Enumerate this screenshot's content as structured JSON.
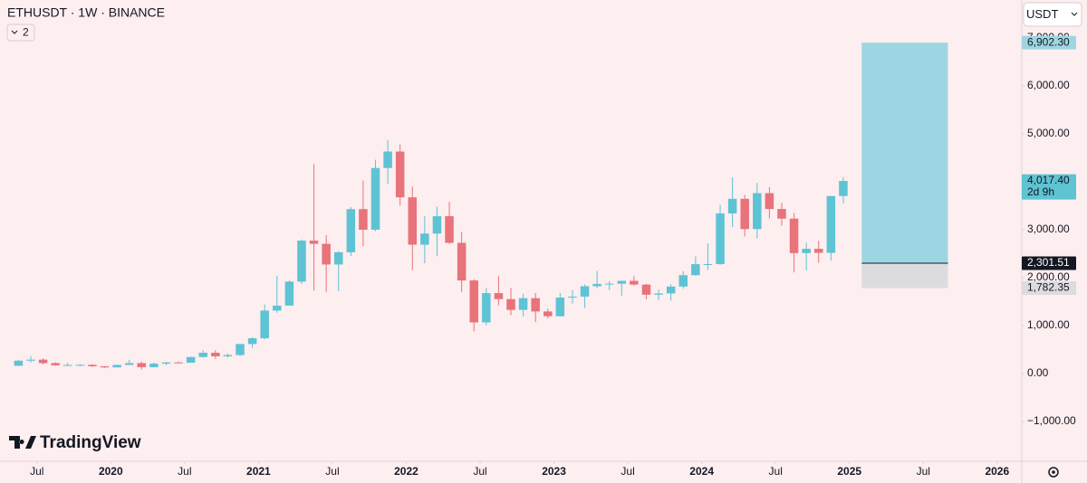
{
  "chart_data": {
    "type": "candlestick",
    "title": "ETHUSDT · 1W · BINANCE",
    "indicator_count": "2",
    "currency": "USDT",
    "logo": "TradingView",
    "up_color": "#5ec3d3",
    "down_color": "#e8737a",
    "x": [
      "2019-05",
      "2019-06",
      "2019-07",
      "2019-08",
      "2019-09",
      "2019-10",
      "2019-11",
      "2019-12",
      "2020-01",
      "2020-02",
      "2020-03",
      "2020-04",
      "2020-05",
      "2020-06",
      "2020-07",
      "2020-08",
      "2020-09",
      "2020-10",
      "2020-11",
      "2020-12",
      "2021-01",
      "2021-02",
      "2021-03",
      "2021-04",
      "2021-05",
      "2021-06",
      "2021-07",
      "2021-08",
      "2021-09",
      "2021-10",
      "2021-11",
      "2021-12",
      "2022-01",
      "2022-02",
      "2022-03",
      "2022-04",
      "2022-05",
      "2022-06",
      "2022-07",
      "2022-08",
      "2022-09",
      "2022-10",
      "2022-11",
      "2022-12",
      "2023-01",
      "2023-02",
      "2023-03",
      "2023-04",
      "2023-05",
      "2023-06",
      "2023-07",
      "2023-08",
      "2023-09",
      "2023-10",
      "2023-11",
      "2023-12",
      "2024-01",
      "2024-02",
      "2024-03",
      "2024-04",
      "2024-05",
      "2024-06",
      "2024-07",
      "2024-08",
      "2024-09",
      "2024-10",
      "2024-11",
      "2024-12"
    ],
    "open": [
      162,
      268,
      290,
      218,
      172,
      180,
      182,
      152,
      129,
      180,
      218,
      133,
      206,
      231,
      226,
      345,
      434,
      360,
      386,
      616,
      737,
      1314,
      1417,
      1918,
      2773,
      2706,
      2275,
      2530,
      3430,
      3000,
      4288,
      4631,
      3676,
      2688,
      2920,
      3282,
      2727,
      1942,
      1067,
      1678,
      1553,
      1328,
      1572,
      1295,
      1196,
      1585,
      1605,
      1822,
      1870,
      1874,
      1934,
      1856,
      1645,
      1671,
      1815,
      2052,
      2282,
      2283,
      3340,
      3645,
      3014,
      3763,
      3433,
      3232,
      2513,
      2602,
      2518,
      3703
    ],
    "high": [
      285,
      363,
      317,
      237,
      224,
      197,
      196,
      153,
      185,
      288,
      253,
      227,
      245,
      253,
      349,
      488,
      488,
      419,
      622,
      757,
      1440,
      2040,
      1943,
      2797,
      4372,
      2890,
      2552,
      3473,
      4027,
      4460,
      4868,
      4778,
      3900,
      3285,
      3480,
      3580,
      2955,
      1970,
      1787,
      2030,
      1785,
      1666,
      1680,
      1353,
      1680,
      1743,
      1857,
      2141,
      1928,
      1935,
      2029,
      1870,
      1753,
      1865,
      2137,
      2445,
      2718,
      3522,
      4093,
      3730,
      3977,
      3887,
      3562,
      3350,
      2728,
      2770,
      3682,
      4100
    ],
    "low": [
      158,
      231,
      190,
      163,
      153,
      155,
      137,
      117,
      126,
      179,
      86,
      128,
      176,
      216,
      224,
      335,
      308,
      335,
      366,
      532,
      714,
      1270,
      1438,
      1865,
      1728,
      1700,
      1718,
      2450,
      2652,
      2970,
      3960,
      3500,
      2160,
      2300,
      2450,
      2700,
      1700,
      880,
      1006,
      1422,
      1220,
      1190,
      1073,
      1150,
      1190,
      1460,
      1368,
      1785,
      1740,
      1626,
      1833,
      1550,
      1531,
      1521,
      1770,
      2041,
      2160,
      2265,
      3056,
      2860,
      2818,
      3236,
      3087,
      2111,
      2150,
      2310,
      2357,
      3550
    ],
    "close": [
      268,
      290,
      218,
      172,
      180,
      182,
      152,
      129,
      180,
      218,
      133,
      206,
      231,
      226,
      345,
      434,
      360,
      386,
      616,
      737,
      1314,
      1417,
      1918,
      2773,
      2706,
      2275,
      2530,
      3430,
      3000,
      4288,
      4631,
      3676,
      2688,
      2920,
      3282,
      2727,
      1942,
      1067,
      1678,
      1553,
      1328,
      1572,
      1295,
      1196,
      1585,
      1605,
      1822,
      1870,
      1874,
      1934,
      1856,
      1645,
      1671,
      1815,
      2052,
      2282,
      2283,
      3340,
      3645,
      3014,
      3763,
      3433,
      3232,
      2513,
      2602,
      2518,
      3703,
      4017.4
    ],
    "xlim": [
      "2019-04",
      "2026-03"
    ],
    "xticks": [
      {
        "value": "2019-07",
        "label": "Jul"
      },
      {
        "value": "2020-01",
        "label": "2020"
      },
      {
        "value": "2020-07",
        "label": "Jul"
      },
      {
        "value": "2021-01",
        "label": "2021"
      },
      {
        "value": "2021-07",
        "label": "Jul"
      },
      {
        "value": "2022-01",
        "label": "2022"
      },
      {
        "value": "2022-07",
        "label": "Jul"
      },
      {
        "value": "2023-01",
        "label": "2023"
      },
      {
        "value": "2023-07",
        "label": "Jul"
      },
      {
        "value": "2024-01",
        "label": "2024"
      },
      {
        "value": "2024-07",
        "label": "Jul"
      },
      {
        "value": "2025-01",
        "label": "2025"
      },
      {
        "value": "2025-07",
        "label": "Jul"
      },
      {
        "value": "2026-01",
        "label": "2026"
      }
    ],
    "ylim": [
      -1830,
      7792
    ],
    "yticks": [
      {
        "value": -1000,
        "label": "−1,000.00"
      },
      {
        "value": 0,
        "label": "0.00"
      },
      {
        "value": 1000,
        "label": "1,000.00"
      },
      {
        "value": 2000,
        "label": "2,000.00"
      },
      {
        "value": 3000,
        "label": "3,000.00"
      },
      {
        "value": 4000,
        "label": "4,000.00"
      },
      {
        "value": 5000,
        "label": "5,000.00"
      },
      {
        "value": 6000,
        "label": "6,000.00"
      },
      {
        "value": 7000,
        "label": "7,000.00"
      }
    ],
    "grid": false,
    "position": {
      "x": [
        "2025-02",
        "2025-09"
      ],
      "target": {
        "value": 6902.3,
        "label": "6,902.30"
      },
      "entry": {
        "value": 2301.51,
        "label": "2,301.51"
      },
      "stop": {
        "value": 1782.35,
        "label": "1,782.35"
      },
      "profit_color": "#9dd6e2",
      "loss_color": "#dcdbe0"
    },
    "last_price": {
      "value": 4017.4,
      "label": "4,017.40"
    },
    "countdown": "2d 9h"
  }
}
